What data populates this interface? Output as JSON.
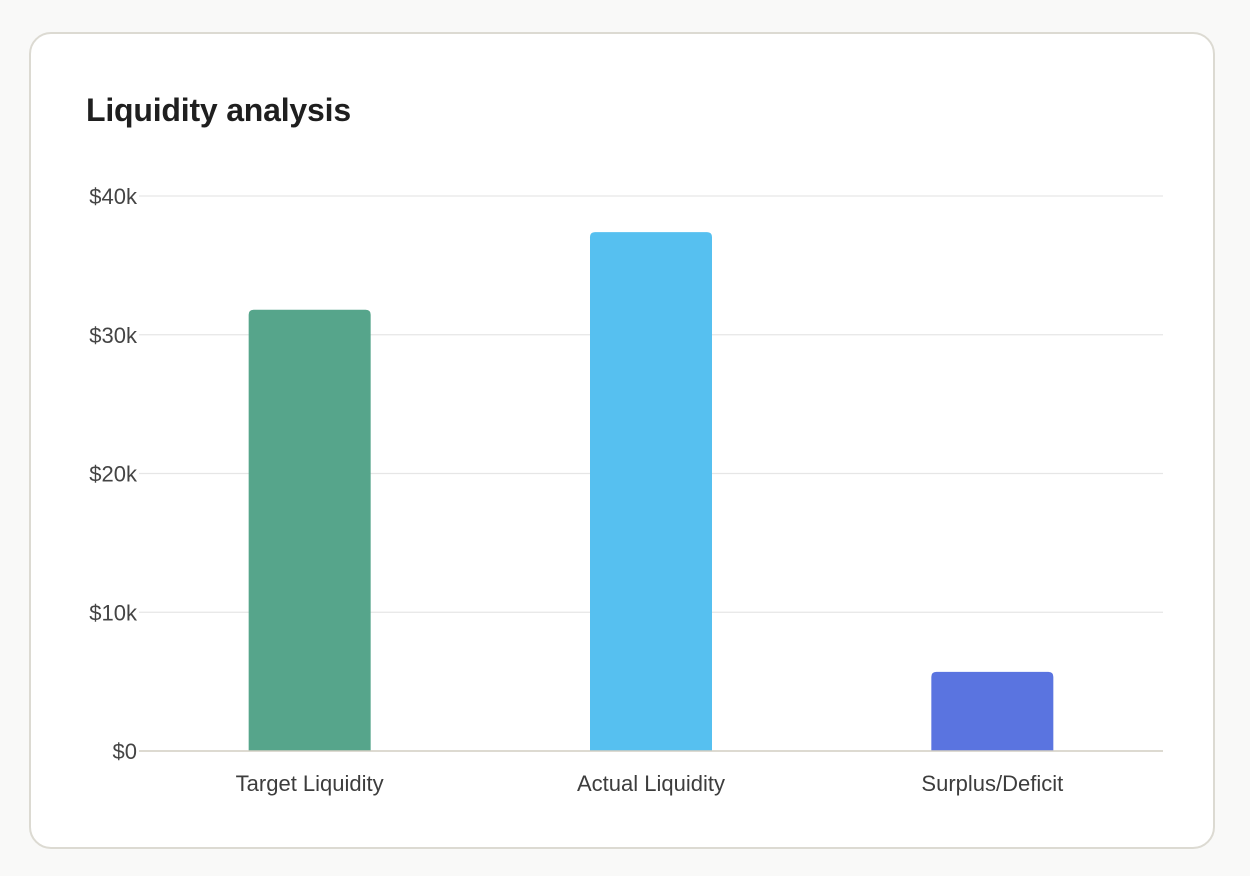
{
  "card": {
    "title": "Liquidity analysis"
  },
  "chart_data": {
    "type": "bar",
    "title": "Liquidity analysis",
    "xlabel": "",
    "ylabel": "",
    "categories": [
      "Target Liquidity",
      "Actual Liquidity",
      "Surplus/Deficit"
    ],
    "values": [
      31800,
      37400,
      5700
    ],
    "colors": [
      "#56a58b",
      "#56c0f0",
      "#5a74e0"
    ],
    "ylim": [
      0,
      40000
    ],
    "yticks": [
      0,
      10000,
      20000,
      30000,
      40000
    ],
    "ytick_labels": [
      "$0",
      "$10k",
      "$20k",
      "$30k",
      "$40k"
    ],
    "grid": true,
    "legend": "none"
  }
}
